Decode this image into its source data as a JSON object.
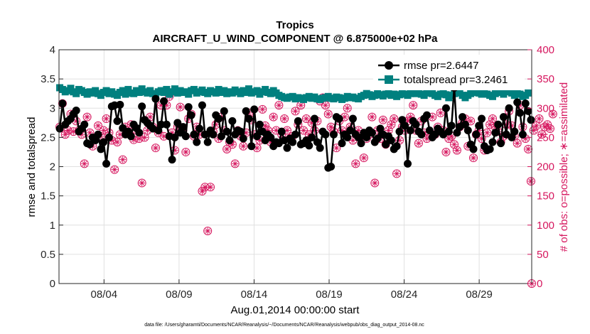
{
  "chart_data": {
    "type": "line",
    "title_line1": "Tropics",
    "title_line2": "AIRCRAFT_U_WIND_COMPONENT @ 6.875000e+02 hPa",
    "xlabel": "Aug.01,2014 00:00:00 start",
    "ylabel_left": "rmse and totalspread",
    "ylabel_right": "# of obs: o=possible; ∗=assimilated",
    "footnote": "data file: /Users/gharamti/Documents/NCAR/Reanalysis/~/Documents/NCAR/Reanalysis/webpub/obs_diag_output_2014-08.nc",
    "xlim": [
      1,
      32.5
    ],
    "ylim_left": [
      0,
      4
    ],
    "ylim_right": [
      0,
      400
    ],
    "x_tick_labels": [
      "08/04",
      "08/09",
      "08/14",
      "08/19",
      "08/24",
      "08/29"
    ],
    "x_tick_positions": [
      4,
      9,
      14,
      19,
      24,
      29
    ],
    "y_left_ticks": [
      "0",
      "0.5",
      "1",
      "1.5",
      "2",
      "2.5",
      "3",
      "3.5",
      "4"
    ],
    "y_right_ticks": [
      "0",
      "50",
      "100",
      "150",
      "200",
      "250",
      "300",
      "350",
      "400"
    ],
    "colors": {
      "rmse": "#000000",
      "spread": "#00807f",
      "obs": "#d6165e",
      "grid": "#e0e0e0"
    },
    "series": [
      {
        "name": "rmse pr=2.6447",
        "legend_label": "rmse pr=2.6447",
        "marker": "circle"
      },
      {
        "name": "totalspread pr=3.2461",
        "legend_label": "totalspread pr=3.2461",
        "marker": "square"
      }
    ],
    "rmse": [
      2.65,
      3.08,
      2.72,
      2.78,
      2.82,
      2.9,
      2.96,
      2.6,
      2.65,
      2.72,
      2.4,
      2.38,
      2.5,
      2.45,
      2.55,
      2.3,
      2.42,
      2.05,
      2.5,
      3.03,
      3.05,
      2.78,
      3.06,
      2.66,
      2.55,
      2.6,
      2.52,
      2.72,
      2.66,
      2.58,
      3.03,
      2.8,
      2.75,
      2.7,
      2.65,
      3.16,
      2.62,
      2.72,
      3.12,
      2.72,
      2.52,
      2.12,
      2.5,
      2.75,
      2.58,
      2.68,
      2.52,
      3.02,
      2.88,
      2.55,
      2.42,
      2.65,
      3.05,
      2.55,
      2.42,
      2.62,
      2.55,
      2.88,
      2.82,
      2.52,
      2.95,
      2.6,
      2.45,
      2.78,
      2.55,
      2.62,
      2.6,
      2.48,
      2.95,
      2.82,
      2.35,
      2.98,
      2.52,
      2.72,
      2.6,
      2.45,
      2.55,
      2.5,
      2.35,
      2.42,
      2.4,
      2.6,
      2.45,
      2.32,
      2.48,
      2.42,
      2.55,
      2.78,
      2.38,
      2.4,
      2.45,
      2.36,
      2.5,
      2.82,
      2.42,
      2.32,
      2.6,
      2.55,
      1.98,
      2.0,
      2.55,
      2.85,
      2.82,
      2.4,
      2.55,
      2.5,
      2.62,
      2.82,
      2.55,
      2.5,
      2.4,
      2.58,
      2.5,
      2.62,
      2.58,
      2.42,
      2.48,
      2.65,
      2.55,
      2.38,
      2.52,
      2.45,
      2.3,
      2.35,
      2.6,
      2.8,
      2.7,
      2.05,
      2.62,
      2.78,
      2.72,
      2.6,
      2.55,
      2.82,
      2.88,
      2.62,
      2.5,
      2.55,
      2.65,
      2.6,
      2.55,
      3.0,
      2.6,
      2.7,
      3.35,
      2.58,
      2.68,
      2.85,
      2.72,
      2.62,
      2.38,
      2.3,
      2.55,
      2.7,
      2.82,
      2.35,
      2.28,
      2.3,
      2.42,
      2.58,
      2.72,
      2.4,
      2.85,
      2.55,
      3.0,
      2.5,
      2.6,
      3.1,
      2.92,
      2.55,
      3.08,
      2.95,
      2.8
    ],
    "spread": [
      3.35,
      3.32,
      3.28,
      3.3,
      3.34,
      3.28,
      3.25,
      3.32,
      3.3,
      3.27,
      3.24,
      3.28,
      3.26,
      3.3,
      3.25,
      3.22,
      3.27,
      3.3,
      3.25,
      3.28,
      3.24,
      3.22,
      3.27,
      3.3,
      3.24,
      3.32,
      3.26,
      3.25,
      3.3,
      3.27,
      3.33,
      3.28,
      3.26,
      3.3,
      3.25,
      3.22,
      3.28,
      3.3,
      3.27,
      3.32,
      3.24,
      3.28,
      3.33,
      3.26,
      3.3,
      3.27,
      3.28,
      3.24,
      3.3,
      3.32,
      3.26,
      3.28,
      3.31,
      3.27,
      3.25,
      3.3,
      3.28,
      3.26,
      3.32,
      3.27,
      3.3,
      3.25,
      3.28,
      3.26,
      3.31,
      3.28,
      3.25,
      3.3,
      3.27,
      3.33,
      3.26,
      3.28,
      3.3,
      3.24,
      3.28,
      3.32,
      3.27,
      3.25,
      3.3,
      3.26,
      3.22,
      3.2,
      3.18,
      3.17,
      3.19,
      3.2,
      3.16,
      3.18,
      3.17,
      3.15,
      3.18,
      3.2,
      3.17,
      3.19,
      3.16,
      3.15,
      3.17,
      3.18,
      3.2,
      3.17,
      3.16,
      3.19,
      3.18,
      3.15,
      3.17,
      3.2,
      3.18,
      3.19,
      3.17,
      3.16,
      3.2,
      3.22,
      3.25,
      3.23,
      3.2,
      3.22,
      3.25,
      3.23,
      3.21,
      3.24,
      3.26,
      3.22,
      3.24,
      3.2,
      3.23,
      3.26,
      3.24,
      3.22,
      3.25,
      3.28,
      3.25,
      3.27,
      3.24,
      3.22,
      3.26,
      3.28,
      3.25,
      3.22,
      3.2,
      3.24,
      3.26,
      3.23,
      3.18,
      3.22,
      3.25,
      3.28,
      3.26,
      3.22,
      3.18,
      3.22,
      3.25,
      3.27,
      3.3,
      3.26,
      3.24,
      3.27,
      3.24,
      3.22,
      3.2,
      3.25,
      3.3,
      3.27,
      3.24,
      3.28,
      3.3,
      3.26,
      3.22,
      3.25,
      3.24,
      3.2,
      3.22,
      3.26
    ],
    "obs": [
      268,
      308,
      255,
      262,
      290,
      260,
      278,
      262,
      255,
      205,
      285,
      258,
      235,
      248,
      270,
      252,
      262,
      282,
      258,
      245,
      195,
      242,
      255,
      212,
      268,
      258,
      272,
      246,
      262,
      248,
      172,
      250,
      262,
      285,
      268,
      232,
      258,
      305,
      252,
      305,
      320,
      258,
      228,
      268,
      302,
      262,
      225,
      282,
      290,
      252,
      268,
      255,
      158,
      165,
      90,
      165,
      260,
      272,
      248,
      285,
      262,
      230,
      242,
      238,
      205,
      262,
      252,
      235,
      258,
      292,
      280,
      255,
      232,
      245,
      298,
      270,
      262,
      242,
      285,
      262,
      305,
      255,
      282,
      262,
      248,
      252,
      295,
      272,
      305,
      262,
      282,
      255,
      275,
      262,
      278,
      312,
      318,
      305,
      290,
      268,
      260,
      232,
      278,
      262,
      285,
      300,
      268,
      245,
      205,
      262,
      252,
      215,
      248,
      255,
      285,
      172,
      262,
      248,
      280,
      238,
      262,
      272,
      282,
      188,
      245,
      268,
      262,
      278,
      285,
      305,
      262,
      240,
      278,
      258,
      248,
      258,
      285,
      255,
      268,
      292,
      262,
      225,
      248,
      252,
      238,
      228,
      268,
      275,
      282,
      235,
      278,
      215,
      255,
      262,
      248,
      228,
      258,
      272,
      282,
      268,
      260,
      242,
      252,
      272,
      295,
      270,
      252,
      240,
      305,
      268,
      248,
      230,
      175,
      262,
      270,
      282,
      255,
      268,
      272,
      265,
      290
    ],
    "obs_final_x": 32.5,
    "obs_final": 0
  }
}
